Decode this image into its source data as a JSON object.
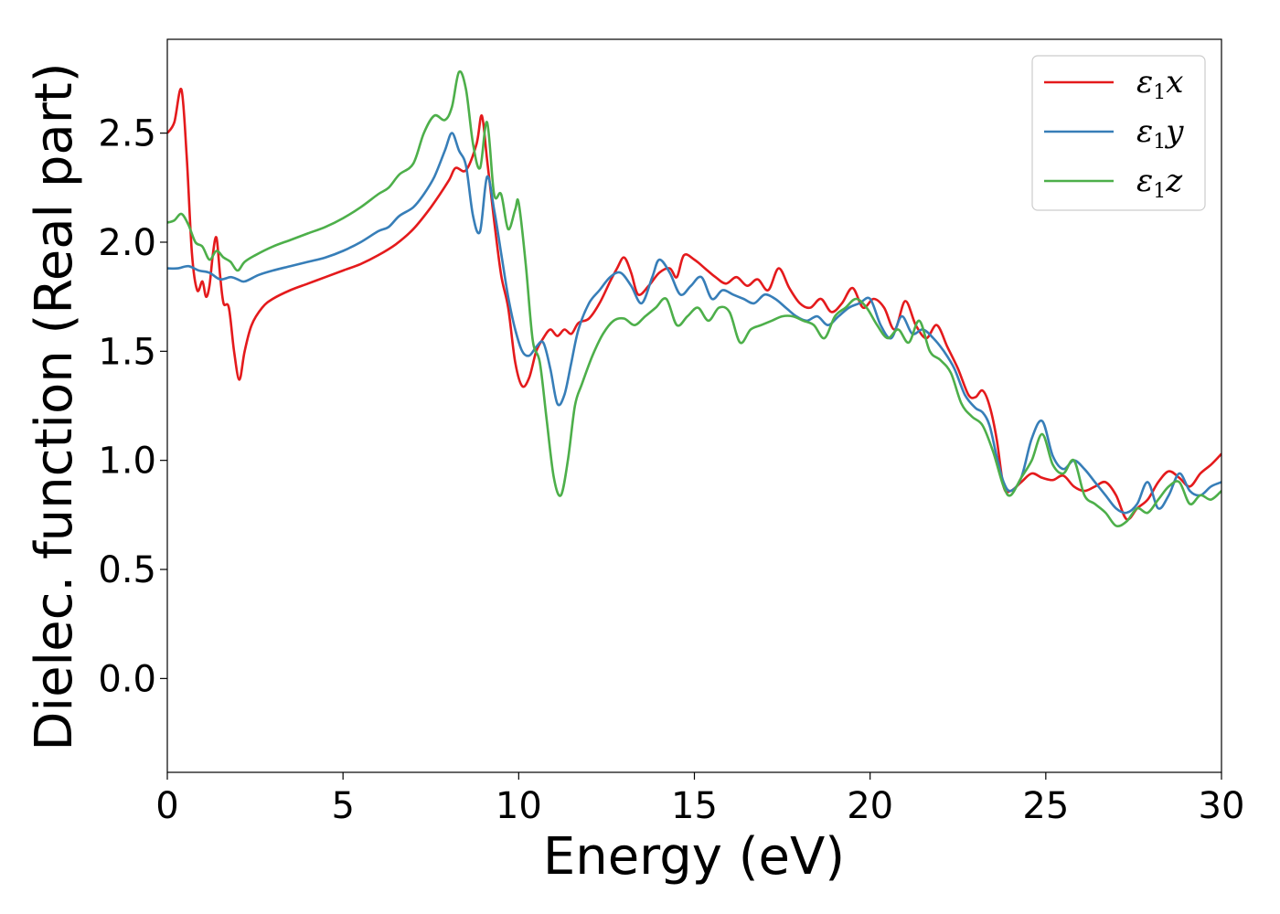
{
  "chart_data": {
    "type": "line",
    "title": "",
    "xlabel": "Energy (eV)",
    "ylabel": "Dielec. function (Real part)",
    "xlim": [
      0,
      30
    ],
    "ylim": [
      -0.43,
      2.93
    ],
    "xticks": [
      0,
      5,
      10,
      15,
      20,
      25,
      30
    ],
    "xtick_labels": [
      "0",
      "5",
      "10",
      "15",
      "20",
      "25",
      "30"
    ],
    "yticks": [
      0.0,
      0.5,
      1.0,
      1.5,
      2.0,
      2.5
    ],
    "ytick_labels": [
      "0.0",
      "0.5",
      "1.0",
      "1.5",
      "2.0",
      "2.5"
    ],
    "grid": false,
    "legend_position": "top-right",
    "series": [
      {
        "name": "ε1x",
        "legend_main": "ε",
        "legend_sub": "1",
        "legend_tail": "x",
        "color": "#e41a1c",
        "x": [
          0,
          0.2,
          0.4,
          0.55,
          0.7,
          0.85,
          1.0,
          1.1,
          1.2,
          1.3,
          1.4,
          1.5,
          1.6,
          1.75,
          1.9,
          2.05,
          2.2,
          2.4,
          2.7,
          3.0,
          3.5,
          4.0,
          4.5,
          5.0,
          5.5,
          6.0,
          6.5,
          7.0,
          7.5,
          8.0,
          8.2,
          8.5,
          8.8,
          8.95,
          9.1,
          9.3,
          9.5,
          9.7,
          9.9,
          10.1,
          10.3,
          10.5,
          10.7,
          10.9,
          11.1,
          11.3,
          11.5,
          11.7,
          12.0,
          12.3,
          12.6,
          12.8,
          13.0,
          13.2,
          13.4,
          13.7,
          14.0,
          14.3,
          14.5,
          14.7,
          15.0,
          15.3,
          15.6,
          15.9,
          16.2,
          16.5,
          16.8,
          17.1,
          17.4,
          17.7,
          18.0,
          18.3,
          18.6,
          18.9,
          19.2,
          19.5,
          19.8,
          20.1,
          20.4,
          20.7,
          21.0,
          21.3,
          21.6,
          21.9,
          22.2,
          22.5,
          22.8,
          23.0,
          23.2,
          23.4,
          23.6,
          23.8,
          24.0,
          24.3,
          24.6,
          24.9,
          25.2,
          25.5,
          25.8,
          26.1,
          26.4,
          26.7,
          27.0,
          27.3,
          27.6,
          27.9,
          28.2,
          28.5,
          28.8,
          29.1,
          29.4,
          29.7,
          30.0
        ],
        "y": [
          2.5,
          2.55,
          2.7,
          2.4,
          1.95,
          1.78,
          1.82,
          1.75,
          1.8,
          1.95,
          2.02,
          1.85,
          1.72,
          1.7,
          1.5,
          1.37,
          1.5,
          1.62,
          1.7,
          1.74,
          1.78,
          1.81,
          1.84,
          1.87,
          1.9,
          1.94,
          1.99,
          2.06,
          2.16,
          2.28,
          2.34,
          2.33,
          2.45,
          2.58,
          2.38,
          2.1,
          1.85,
          1.7,
          1.45,
          1.34,
          1.38,
          1.5,
          1.56,
          1.6,
          1.57,
          1.6,
          1.58,
          1.63,
          1.65,
          1.72,
          1.82,
          1.88,
          1.93,
          1.86,
          1.76,
          1.8,
          1.86,
          1.88,
          1.84,
          1.94,
          1.92,
          1.88,
          1.84,
          1.81,
          1.84,
          1.8,
          1.83,
          1.78,
          1.88,
          1.79,
          1.72,
          1.7,
          1.74,
          1.68,
          1.72,
          1.79,
          1.7,
          1.74,
          1.7,
          1.6,
          1.73,
          1.62,
          1.56,
          1.62,
          1.52,
          1.42,
          1.3,
          1.29,
          1.32,
          1.25,
          1.1,
          0.88,
          0.86,
          0.9,
          0.94,
          0.92,
          0.91,
          0.93,
          0.88,
          0.86,
          0.88,
          0.9,
          0.84,
          0.73,
          0.78,
          0.82,
          0.9,
          0.95,
          0.92,
          0.88,
          0.94,
          0.98,
          1.03
        ]
      },
      {
        "name": "ε1y",
        "legend_main": "ε",
        "legend_sub": "1",
        "legend_tail": "y",
        "color": "#377eb8",
        "x": [
          0,
          0.3,
          0.6,
          0.9,
          1.2,
          1.5,
          1.8,
          2.0,
          2.2,
          2.6,
          3.0,
          3.5,
          4.0,
          4.5,
          5.0,
          5.5,
          6.0,
          6.3,
          6.6,
          7.0,
          7.3,
          7.6,
          7.9,
          8.1,
          8.3,
          8.5,
          8.7,
          8.9,
          9.1,
          9.3,
          9.5,
          9.7,
          9.9,
          10.1,
          10.3,
          10.5,
          10.7,
          10.9,
          11.1,
          11.3,
          11.5,
          11.7,
          12.0,
          12.3,
          12.6,
          12.9,
          13.2,
          13.5,
          13.8,
          14.0,
          14.3,
          14.6,
          14.9,
          15.2,
          15.5,
          15.8,
          16.1,
          16.4,
          16.7,
          17.0,
          17.3,
          17.6,
          17.9,
          18.2,
          18.5,
          18.8,
          19.1,
          19.4,
          19.7,
          20.0,
          20.3,
          20.6,
          20.9,
          21.2,
          21.5,
          21.8,
          22.1,
          22.4,
          22.7,
          23.0,
          23.2,
          23.4,
          23.6,
          23.8,
          24.0,
          24.3,
          24.6,
          24.9,
          25.2,
          25.5,
          25.8,
          26.1,
          26.4,
          26.7,
          27.0,
          27.3,
          27.6,
          27.9,
          28.2,
          28.5,
          28.8,
          29.1,
          29.4,
          29.7,
          30.0
        ],
        "y": [
          1.88,
          1.88,
          1.89,
          1.87,
          1.86,
          1.83,
          1.84,
          1.83,
          1.82,
          1.85,
          1.87,
          1.89,
          1.91,
          1.93,
          1.96,
          2.0,
          2.05,
          2.07,
          2.12,
          2.16,
          2.22,
          2.3,
          2.42,
          2.5,
          2.42,
          2.35,
          2.12,
          2.05,
          2.3,
          2.15,
          1.95,
          1.75,
          1.6,
          1.5,
          1.48,
          1.52,
          1.54,
          1.42,
          1.26,
          1.3,
          1.45,
          1.6,
          1.72,
          1.78,
          1.84,
          1.86,
          1.8,
          1.72,
          1.84,
          1.92,
          1.86,
          1.76,
          1.8,
          1.84,
          1.74,
          1.78,
          1.76,
          1.74,
          1.72,
          1.76,
          1.74,
          1.7,
          1.66,
          1.64,
          1.66,
          1.62,
          1.66,
          1.7,
          1.72,
          1.74,
          1.62,
          1.56,
          1.66,
          1.58,
          1.6,
          1.56,
          1.5,
          1.42,
          1.3,
          1.24,
          1.22,
          1.16,
          1.02,
          0.9,
          0.86,
          0.92,
          1.1,
          1.18,
          1.02,
          0.96,
          1.0,
          0.96,
          0.9,
          0.84,
          0.78,
          0.76,
          0.8,
          0.9,
          0.78,
          0.84,
          0.94,
          0.86,
          0.84,
          0.88,
          0.9
        ]
      },
      {
        "name": "ε1z",
        "legend_main": "ε",
        "legend_sub": "1",
        "legend_tail": "z",
        "color": "#4daf4a",
        "x": [
          0,
          0.2,
          0.4,
          0.6,
          0.8,
          1.0,
          1.2,
          1.4,
          1.6,
          1.8,
          2.0,
          2.2,
          2.5,
          3.0,
          3.5,
          4.0,
          4.5,
          5.0,
          5.5,
          6.0,
          6.3,
          6.6,
          7.0,
          7.3,
          7.6,
          7.9,
          8.1,
          8.3,
          8.5,
          8.7,
          8.9,
          9.1,
          9.3,
          9.5,
          9.7,
          9.9,
          10.0,
          10.2,
          10.4,
          10.6,
          10.8,
          11.0,
          11.2,
          11.4,
          11.6,
          11.8,
          12.1,
          12.4,
          12.7,
          13.0,
          13.3,
          13.6,
          13.9,
          14.2,
          14.5,
          14.8,
          15.1,
          15.4,
          15.7,
          16.0,
          16.3,
          16.6,
          16.9,
          17.2,
          17.5,
          17.8,
          18.1,
          18.4,
          18.7,
          19.0,
          19.3,
          19.6,
          19.9,
          20.2,
          20.5,
          20.8,
          21.1,
          21.4,
          21.7,
          22.0,
          22.3,
          22.6,
          22.9,
          23.2,
          23.5,
          23.8,
          24.0,
          24.3,
          24.6,
          24.9,
          25.2,
          25.5,
          25.8,
          26.1,
          26.4,
          26.7,
          27.0,
          27.3,
          27.6,
          27.9,
          28.2,
          28.5,
          28.8,
          29.1,
          29.4,
          29.7,
          30.0
        ],
        "y": [
          2.09,
          2.1,
          2.13,
          2.08,
          2.0,
          1.98,
          1.92,
          1.96,
          1.93,
          1.91,
          1.87,
          1.91,
          1.94,
          1.98,
          2.01,
          2.04,
          2.07,
          2.11,
          2.16,
          2.22,
          2.25,
          2.31,
          2.36,
          2.5,
          2.58,
          2.56,
          2.62,
          2.78,
          2.7,
          2.45,
          2.34,
          2.55,
          2.22,
          2.22,
          2.06,
          2.15,
          2.18,
          1.9,
          1.55,
          1.45,
          1.18,
          0.92,
          0.84,
          1.0,
          1.25,
          1.35,
          1.48,
          1.58,
          1.64,
          1.65,
          1.62,
          1.66,
          1.7,
          1.74,
          1.62,
          1.66,
          1.7,
          1.64,
          1.7,
          1.68,
          1.54,
          1.6,
          1.62,
          1.64,
          1.66,
          1.66,
          1.64,
          1.62,
          1.56,
          1.66,
          1.7,
          1.74,
          1.7,
          1.62,
          1.56,
          1.6,
          1.54,
          1.64,
          1.5,
          1.46,
          1.4,
          1.26,
          1.2,
          1.16,
          1.04,
          0.88,
          0.84,
          0.92,
          1.0,
          1.12,
          0.98,
          0.94,
          1.0,
          0.84,
          0.8,
          0.76,
          0.7,
          0.72,
          0.78,
          0.76,
          0.82,
          0.88,
          0.9,
          0.8,
          0.84,
          0.82,
          0.86
        ]
      }
    ]
  }
}
